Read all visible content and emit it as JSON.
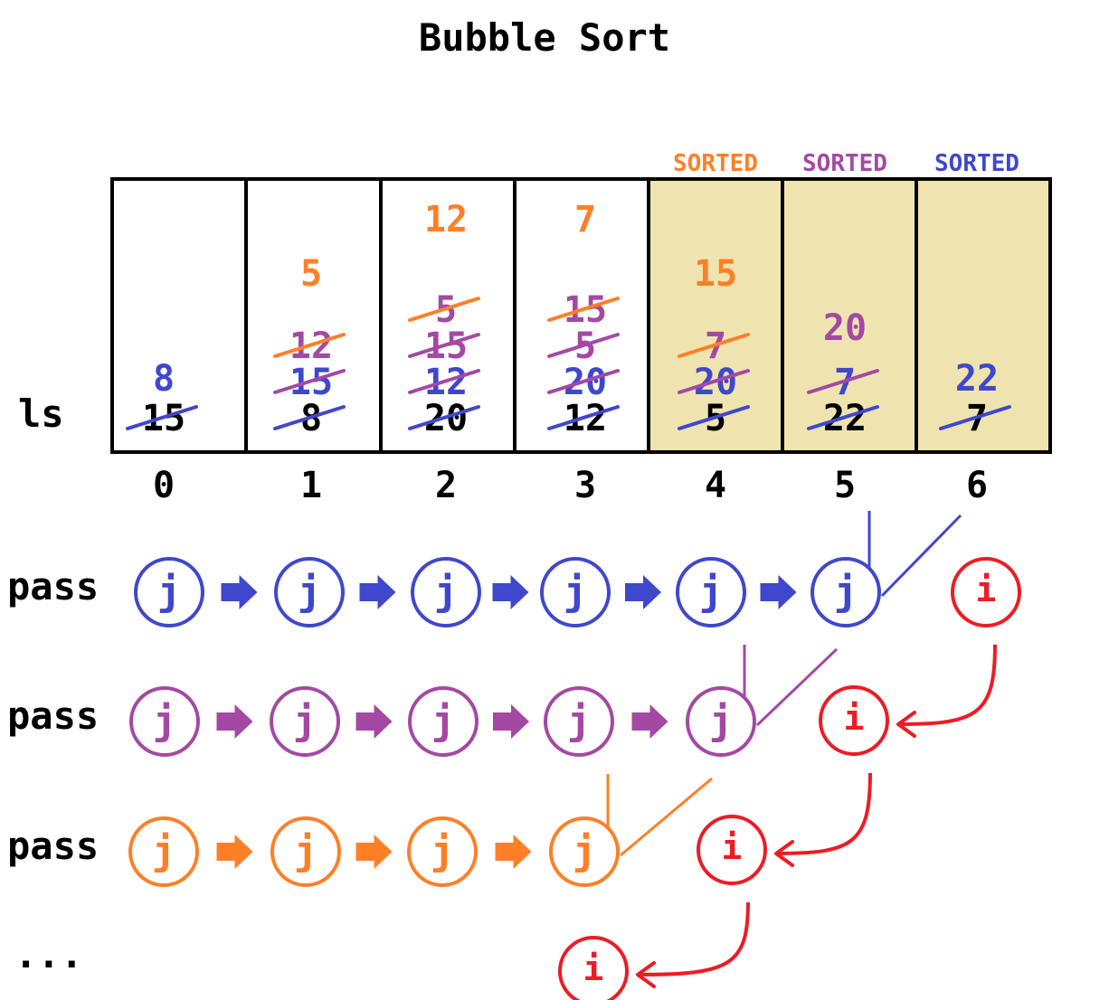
{
  "title": "Bubble Sort",
  "array_label": "ls",
  "pass_label": "pass",
  "ellipsis": "...",
  "pointer_j": "j",
  "pointer_i": "i",
  "colors": {
    "pass1": "#3f48cc",
    "pass2": "#a349a4",
    "pass3": "#ff7f27",
    "i": "#ed1c24",
    "sorted_fill": "#efe4b0",
    "original": "#000000"
  },
  "indices": [
    "0",
    "1",
    "2",
    "3",
    "4",
    "5",
    "6"
  ],
  "sorted_labels": [
    {
      "cell": 4,
      "text": "SORTED",
      "pass": "pass3"
    },
    {
      "cell": 5,
      "text": "SORTED",
      "pass": "pass2"
    },
    {
      "cell": 6,
      "text": "SORTED",
      "pass": "pass1"
    }
  ],
  "cells": [
    {
      "original": "15",
      "history": [
        {
          "v": "8",
          "pass": "pass1",
          "struck": false
        }
      ]
    },
    {
      "original": "8",
      "history": [
        {
          "v": "15",
          "pass": "pass1",
          "struck": true
        },
        {
          "v": "12",
          "pass": "pass2",
          "struck": true
        },
        {
          "v": "5",
          "pass": "pass3",
          "struck": false
        }
      ]
    },
    {
      "original": "20",
      "history": [
        {
          "v": "12",
          "pass": "pass1",
          "struck": true
        },
        {
          "v": "15",
          "pass": "pass2",
          "struck": true
        },
        {
          "v": "5",
          "pass": "pass2",
          "struck": true
        },
        {
          "v": "12",
          "pass": "pass3",
          "struck": false
        }
      ]
    },
    {
      "original": "12",
      "history": [
        {
          "v": "20",
          "pass": "pass1",
          "struck": true
        },
        {
          "v": "5",
          "pass": "pass2",
          "struck": true
        },
        {
          "v": "15",
          "pass": "pass2",
          "struck": true
        },
        {
          "v": "7",
          "pass": "pass3",
          "struck": false
        }
      ]
    },
    {
      "original": "5",
      "history": [
        {
          "v": "20",
          "pass": "pass1",
          "struck": true
        },
        {
          "v": "7",
          "pass": "pass2",
          "struck": true
        },
        {
          "v": "15",
          "pass": "pass3",
          "struck": false
        }
      ]
    },
    {
      "original": "22",
      "history": [
        {
          "v": "7",
          "pass": "pass1",
          "struck": true
        },
        {
          "v": "20",
          "pass": "pass2",
          "struck": false
        }
      ]
    },
    {
      "original": "7",
      "history": [
        {
          "v": "22",
          "pass": "pass1",
          "struck": false
        }
      ]
    }
  ],
  "passes": [
    {
      "color": "pass1",
      "j_count": 6
    },
    {
      "color": "pass2",
      "j_count": 5
    },
    {
      "color": "pass3",
      "j_count": 4
    }
  ]
}
